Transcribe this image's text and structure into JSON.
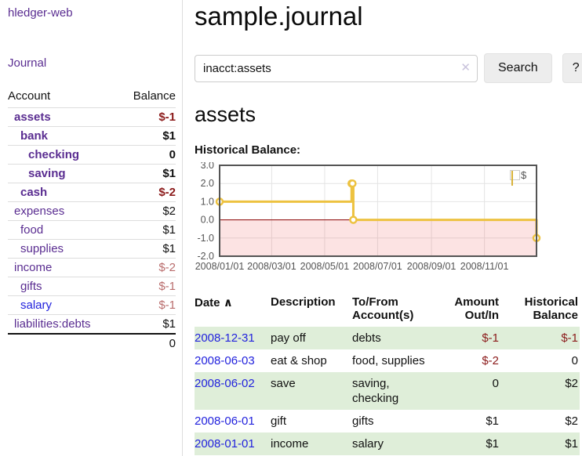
{
  "sidebar": {
    "brand": "hledger-web",
    "nav": {
      "journal_label": "Journal"
    },
    "accounts_table": {
      "headers": {
        "account": "Account",
        "balance": "Balance"
      },
      "rows": [
        {
          "account": "assets",
          "balance": "$-1",
          "indent": 1,
          "bold": true,
          "link_color": "purple",
          "balance_color": "darkred"
        },
        {
          "account": "bank",
          "balance": "$1",
          "indent": 2,
          "bold": true,
          "link_color": "purple",
          "balance_color": "black"
        },
        {
          "account": "checking",
          "balance": "0",
          "indent": 3,
          "bold": true,
          "link_color": "purple",
          "balance_color": "black"
        },
        {
          "account": "saving",
          "balance": "$1",
          "indent": 3,
          "bold": true,
          "link_color": "purple",
          "balance_color": "black"
        },
        {
          "account": "cash",
          "balance": "$-2",
          "indent": 2,
          "bold": true,
          "link_color": "purple",
          "balance_color": "darkred"
        },
        {
          "account": "expenses",
          "balance": "$2",
          "indent": 1,
          "bold": false,
          "link_color": "purple",
          "balance_color": "black"
        },
        {
          "account": "food",
          "balance": "$1",
          "indent": 2,
          "bold": false,
          "link_color": "purple",
          "balance_color": "black"
        },
        {
          "account": "supplies",
          "balance": "$1",
          "indent": 2,
          "bold": false,
          "link_color": "purple",
          "balance_color": "black"
        },
        {
          "account": "income",
          "balance": "$-2",
          "indent": 1,
          "bold": false,
          "link_color": "purple",
          "balance_color": "lightred"
        },
        {
          "account": "gifts",
          "balance": "$-1",
          "indent": 2,
          "bold": false,
          "link_color": "purple",
          "balance_color": "lightred"
        },
        {
          "account": "salary",
          "balance": "$-1",
          "indent": 2,
          "bold": false,
          "link_color": "blue",
          "balance_color": "lightred"
        },
        {
          "account": "liabilities:debts",
          "balance": "$1",
          "indent": 1,
          "bold": false,
          "link_color": "purple",
          "balance_color": "black"
        }
      ],
      "total": "0"
    }
  },
  "header": {
    "title": "sample.journal"
  },
  "search": {
    "value": "inacct:assets",
    "clear_icon": "✕",
    "search_button": "Search",
    "help_button": "?"
  },
  "main": {
    "account_heading": "assets",
    "chart_label": "Historical Balance:"
  },
  "chart_data": {
    "type": "line",
    "step": true,
    "title": "Historical Balance",
    "x_range": [
      "2008-01-01",
      "2008-12-31"
    ],
    "ylim": [
      -2,
      3
    ],
    "y_ticks": [
      "3.0",
      "2.0",
      "1.0",
      "0.0",
      "-1.0",
      "-2.0"
    ],
    "y_tick_values": [
      3,
      2,
      1,
      0,
      -1,
      -2
    ],
    "x_ticks": [
      "2008/01/01",
      "2008/03/01",
      "2008/05/01",
      "2008/07/01",
      "2008/09/01",
      "2008/11/01"
    ],
    "x_tick_dates": [
      "2008-01-01",
      "2008-03-01",
      "2008-05-01",
      "2008-07-01",
      "2008-09-01",
      "2008-11-01"
    ],
    "legend": {
      "label": "$",
      "position": "top-right"
    },
    "grid": true,
    "colors": {
      "line": "#edc240",
      "marker_fill": "#ffffff",
      "zero_line": "#8b0000",
      "negative_region_fill": "rgba(235,80,80,0.16)",
      "grid_line": "#e4e4e4",
      "border": "#545454",
      "tick_text": "#545454"
    },
    "series": [
      {
        "name": "$",
        "points": [
          {
            "date": "2008-01-01",
            "value": 1
          },
          {
            "date": "2008-06-01",
            "value": 2
          },
          {
            "date": "2008-06-02",
            "value": 2
          },
          {
            "date": "2008-06-03",
            "value": 0
          },
          {
            "date": "2008-12-31",
            "value": -1
          }
        ]
      }
    ]
  },
  "register_table": {
    "headers": {
      "date": "Date",
      "sort_caret": "∧",
      "description": "Description",
      "accounts": "To/From Account(s)",
      "amount": "Amount Out/In",
      "balance": "Historical Balance"
    },
    "rows": [
      {
        "date": "2008-12-31",
        "description": "pay off",
        "accounts": "debts",
        "amount": "$-1",
        "amount_negative": true,
        "balance": "$-1",
        "balance_negative": true
      },
      {
        "date": "2008-06-03",
        "description": "eat & shop",
        "accounts": "food, supplies",
        "amount": "$-2",
        "amount_negative": true,
        "balance": "0",
        "balance_negative": false
      },
      {
        "date": "2008-06-02",
        "description": "save",
        "accounts": "saving, checking",
        "amount": "0",
        "amount_negative": false,
        "balance": "$2",
        "balance_negative": false
      },
      {
        "date": "2008-06-01",
        "description": "gift",
        "accounts": "gifts",
        "amount": "$1",
        "amount_negative": false,
        "balance": "$2",
        "balance_negative": false
      },
      {
        "date": "2008-01-01",
        "description": "income",
        "accounts": "salary",
        "amount": "$1",
        "amount_negative": false,
        "balance": "$1",
        "balance_negative": false
      }
    ]
  }
}
